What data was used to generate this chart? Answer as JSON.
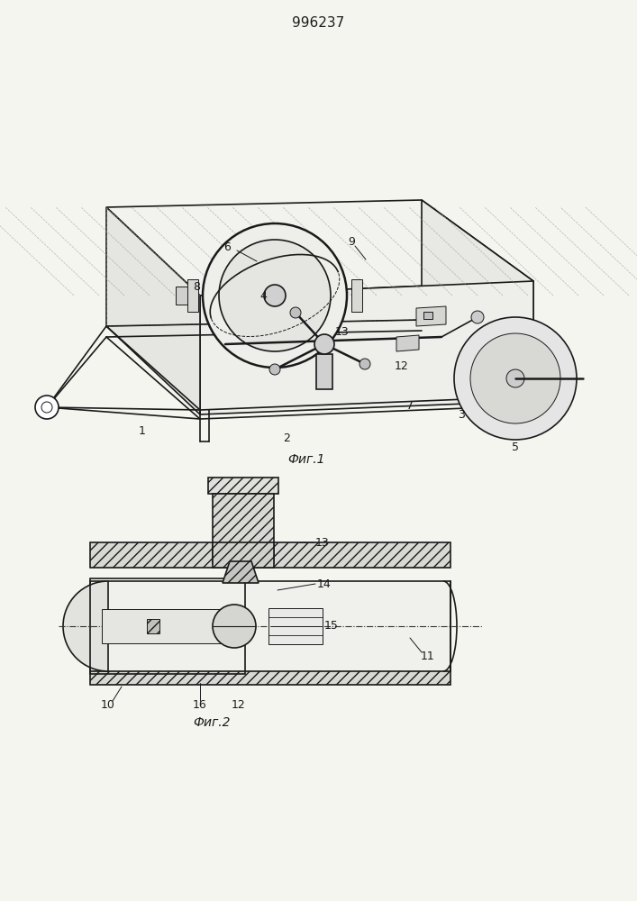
{
  "title": "996237",
  "fig1_label": "Фиг.1",
  "fig2_label": "Фиг.2",
  "bg_color": "#f5f5f0",
  "line_color": "#1a1a1a",
  "font_size_title": 11,
  "font_size_label": 10,
  "font_size_num": 9
}
